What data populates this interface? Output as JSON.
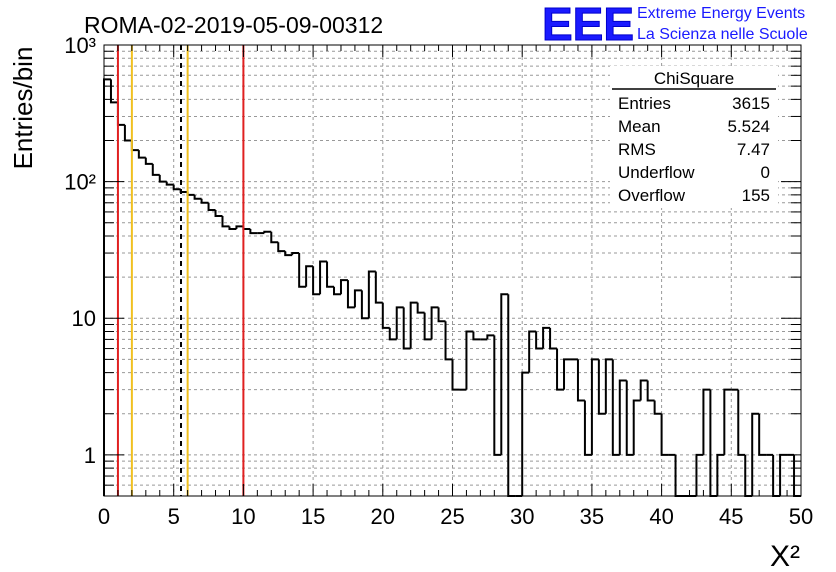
{
  "title": "ROMA-02-2019-05-09-00312",
  "logo": {
    "mark": "EEE",
    "line1": "Extreme Energy Events",
    "line2": "La Scienza nelle Scuole",
    "color": "#1a1aff"
  },
  "stats_box": {
    "title": "ChiSquare",
    "rows": [
      {
        "label": "Entries",
        "value": "3615"
      },
      {
        "label": "Mean",
        "value": "5.524"
      },
      {
        "label": "RMS",
        "value": "7.47"
      },
      {
        "label": "Underflow",
        "value": "0"
      },
      {
        "label": "Overflow",
        "value": "155"
      }
    ]
  },
  "chart_data": {
    "type": "histogram",
    "title": "ROMA-02-2019-05-09-00312",
    "xlabel": "X²",
    "ylabel": "Entries/bin",
    "xlim": [
      0,
      50
    ],
    "ylim": [
      0.5,
      1000
    ],
    "ylog": true,
    "grid": true,
    "bin_width": 0.5,
    "x_ticks": [
      "0",
      "5",
      "10",
      "15",
      "20",
      "25",
      "30",
      "35",
      "40",
      "45",
      "50"
    ],
    "y_ticks": [
      {
        "value": 1,
        "label": "1"
      },
      {
        "value": 10,
        "label": "10"
      },
      {
        "value": 100,
        "label": "10²"
      },
      {
        "value": 1000,
        "label": "10³"
      }
    ],
    "values": [
      560,
      380,
      260,
      200,
      170,
      150,
      135,
      112,
      100,
      95,
      88,
      84,
      80,
      75,
      70,
      62,
      56,
      47,
      45,
      47,
      45,
      42,
      42,
      43,
      36,
      31,
      29,
      30,
      17,
      24,
      15,
      26,
      17,
      15,
      19,
      12,
      16,
      10,
      22,
      13,
      8.5,
      7,
      12,
      6,
      13,
      11,
      7,
      12,
      9.5,
      5,
      3,
      3,
      8,
      7,
      7,
      7.5,
      1,
      15,
      0,
      0.4,
      4,
      8,
      6,
      8.5,
      6,
      3,
      5,
      5,
      2.5,
      1,
      5,
      2,
      5,
      1,
      3.5,
      1,
      2.5,
      3.5,
      2.5,
      2,
      1,
      1,
      0.4,
      0.4,
      0.4,
      1,
      3,
      0.4,
      1,
      3,
      3,
      1,
      0.4,
      2,
      1,
      1,
      0.4,
      1,
      1,
      0.4
    ],
    "vlines": [
      {
        "x": 1.0,
        "color": "#e02020",
        "style": "solid"
      },
      {
        "x": 2.0,
        "color": "#f0c020",
        "style": "solid"
      },
      {
        "x": 5.524,
        "color": "#000000",
        "style": "dashed"
      },
      {
        "x": 6.0,
        "color": "#f0c020",
        "style": "solid"
      },
      {
        "x": 10.0,
        "color": "#e02020",
        "style": "solid"
      }
    ]
  }
}
